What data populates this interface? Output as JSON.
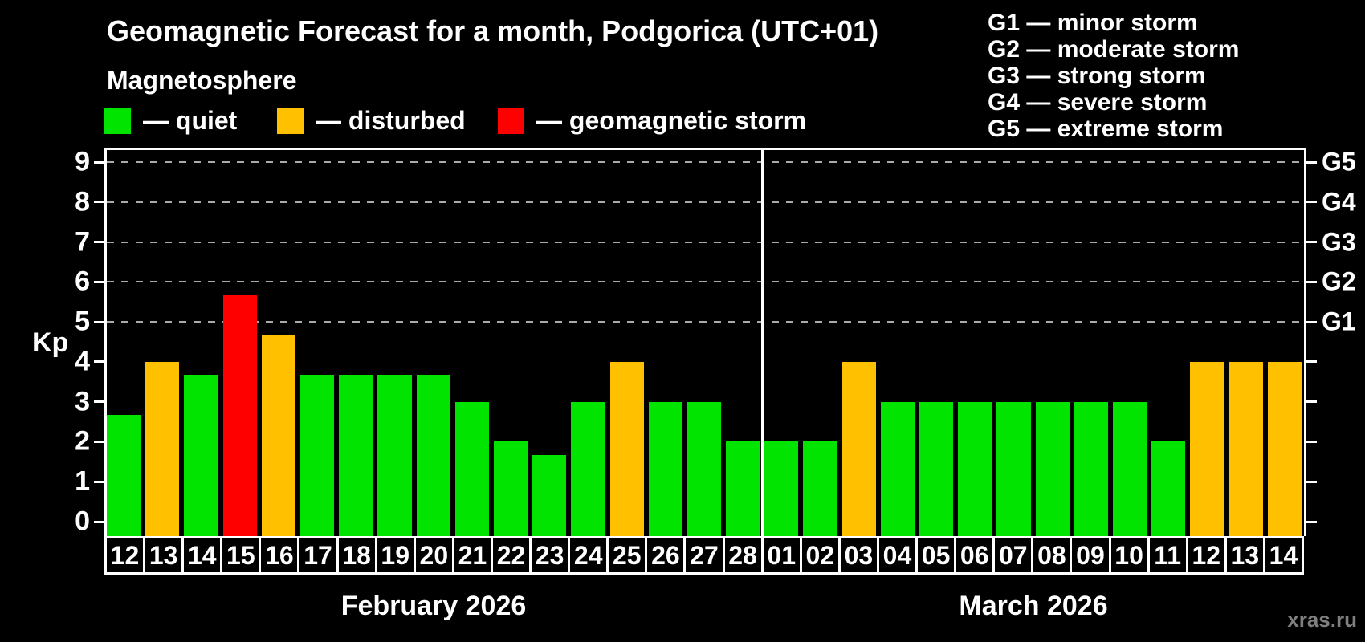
{
  "title": "Geomagnetic Forecast for a month, Podgorica (UTC+01)",
  "subtitle": "Magnetosphere",
  "legend_items": [
    {
      "id": "quiet",
      "label": "— quiet",
      "color": "#00E400"
    },
    {
      "id": "disturbed",
      "label": "— disturbed",
      "color": "#FFC000"
    },
    {
      "id": "storm",
      "label": "— geomagnetic storm",
      "color": "#FF0000"
    }
  ],
  "g_scale_legend": [
    "G1 — minor storm",
    "G2 — moderate storm",
    "G3 — strong storm",
    "G4 — severe storm",
    "G5 — extreme storm"
  ],
  "watermark": "xras.ru",
  "status_colors": {
    "quiet": "#00E400",
    "disturbed": "#FFC000",
    "storm": "#FF0000"
  },
  "chart_data": {
    "type": "bar",
    "title": "Geomagnetic Forecast for a month, Podgorica (UTC+01)",
    "ylabel": "Kp",
    "ylim": [
      0,
      9
    ],
    "yticks": [
      0,
      1,
      2,
      3,
      4,
      5,
      6,
      7,
      8,
      9
    ],
    "gridlines_at_kp": [
      5,
      6,
      7,
      8,
      9
    ],
    "grid": "dashed-horizontal",
    "legend_position": "top-left",
    "right_axis_labels": [
      {
        "label": "G1",
        "kp": 5
      },
      {
        "label": "G2",
        "kp": 6
      },
      {
        "label": "G3",
        "kp": 7
      },
      {
        "label": "G4",
        "kp": 8
      },
      {
        "label": "G5",
        "kp": 9
      }
    ],
    "months": [
      {
        "label": "February 2026",
        "days": [
          {
            "day": "12",
            "kp": 2.67,
            "status": "quiet"
          },
          {
            "day": "13",
            "kp": 4.0,
            "status": "disturbed"
          },
          {
            "day": "14",
            "kp": 3.67,
            "status": "quiet"
          },
          {
            "day": "15",
            "kp": 5.67,
            "status": "storm"
          },
          {
            "day": "16",
            "kp": 4.67,
            "status": "disturbed"
          },
          {
            "day": "17",
            "kp": 3.67,
            "status": "quiet"
          },
          {
            "day": "18",
            "kp": 3.67,
            "status": "quiet"
          },
          {
            "day": "19",
            "kp": 3.67,
            "status": "quiet"
          },
          {
            "day": "20",
            "kp": 3.67,
            "status": "quiet"
          },
          {
            "day": "21",
            "kp": 3.0,
            "status": "quiet"
          },
          {
            "day": "22",
            "kp": 2.0,
            "status": "quiet"
          },
          {
            "day": "23",
            "kp": 1.67,
            "status": "quiet"
          },
          {
            "day": "24",
            "kp": 3.0,
            "status": "quiet"
          },
          {
            "day": "25",
            "kp": 4.0,
            "status": "disturbed"
          },
          {
            "day": "26",
            "kp": 3.0,
            "status": "quiet"
          },
          {
            "day": "27",
            "kp": 3.0,
            "status": "quiet"
          },
          {
            "day": "28",
            "kp": 2.0,
            "status": "quiet"
          }
        ]
      },
      {
        "label": "March 2026",
        "days": [
          {
            "day": "01",
            "kp": 2.0,
            "status": "quiet"
          },
          {
            "day": "02",
            "kp": 2.0,
            "status": "quiet"
          },
          {
            "day": "03",
            "kp": 4.0,
            "status": "disturbed"
          },
          {
            "day": "04",
            "kp": 3.0,
            "status": "quiet"
          },
          {
            "day": "05",
            "kp": 3.0,
            "status": "quiet"
          },
          {
            "day": "06",
            "kp": 3.0,
            "status": "quiet"
          },
          {
            "day": "07",
            "kp": 3.0,
            "status": "quiet"
          },
          {
            "day": "08",
            "kp": 3.0,
            "status": "quiet"
          },
          {
            "day": "09",
            "kp": 3.0,
            "status": "quiet"
          },
          {
            "day": "10",
            "kp": 3.0,
            "status": "quiet"
          },
          {
            "day": "11",
            "kp": 2.0,
            "status": "quiet"
          },
          {
            "day": "12",
            "kp": 4.0,
            "status": "disturbed"
          },
          {
            "day": "13",
            "kp": 4.0,
            "status": "disturbed"
          },
          {
            "day": "14",
            "kp": 4.0,
            "status": "disturbed"
          }
        ]
      }
    ]
  }
}
